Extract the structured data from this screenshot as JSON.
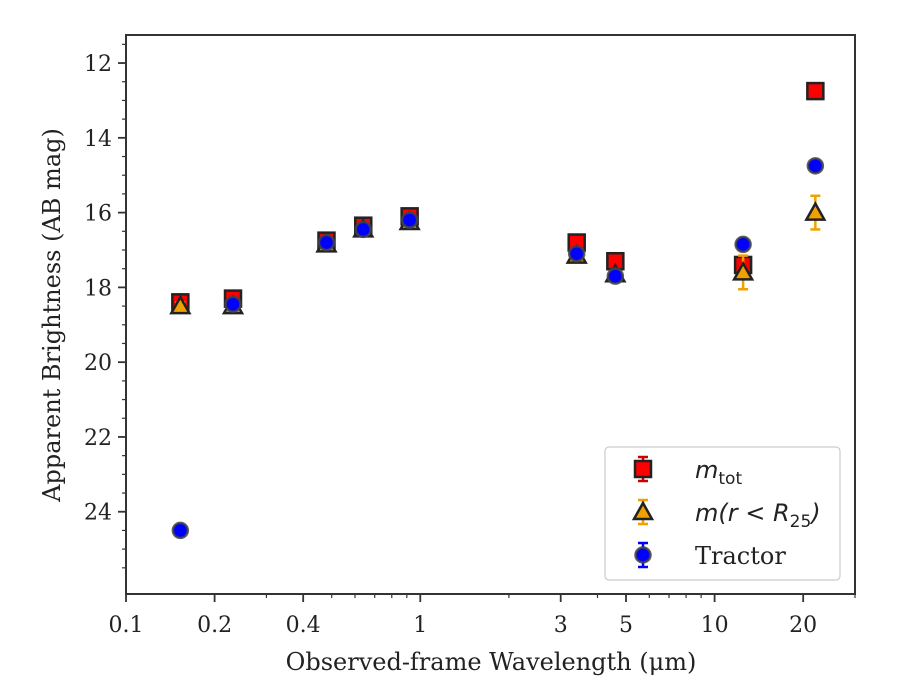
{
  "chart_data": {
    "type": "scatter",
    "xlabel": "Observed-frame Wavelength (μm)",
    "ylabel": "Apparent Brightness (AB mag)",
    "xscale": "log",
    "xlim": [
      0.1,
      30
    ],
    "ylim": [
      26.2,
      11.25
    ],
    "y_inverted": true,
    "xticks": [
      0.1,
      0.2,
      0.4,
      1,
      3,
      5,
      10,
      20
    ],
    "xtick_labels": [
      "0.1",
      "0.2",
      "0.4",
      "1",
      "3",
      "5",
      "10",
      "20"
    ],
    "yticks": [
      12,
      14,
      16,
      18,
      20,
      22,
      24
    ],
    "ytick_labels": [
      "12",
      "14",
      "16",
      "18",
      "20",
      "22",
      "24"
    ],
    "grid": false,
    "legend_placement": "lower-right",
    "series": [
      {
        "name": "m_tot",
        "legend_label": "m",
        "legend_sub": "tot",
        "marker": "square",
        "color": "#ff0000",
        "ecolor": "#cc0000",
        "x": [
          0.153,
          0.231,
          0.48,
          0.64,
          0.92,
          3.4,
          4.6,
          12.5,
          22.0
        ],
        "y": [
          18.4,
          18.3,
          16.75,
          16.35,
          16.1,
          16.8,
          17.3,
          17.4,
          12.75
        ],
        "yerr": [
          0.1,
          0.1,
          0.1,
          0.1,
          0.1,
          0.1,
          0.1,
          0.1,
          0.1
        ]
      },
      {
        "name": "m(r<R25)",
        "legend_label": "m(r < R",
        "legend_sub": "25",
        "legend_close": ")",
        "marker": "triangle",
        "color": "#f0a000",
        "ecolor": "#f0a000",
        "x": [
          0.153,
          0.231,
          0.48,
          0.64,
          0.92,
          3.4,
          4.6,
          12.5,
          22.0
        ],
        "y": [
          18.5,
          18.5,
          16.85,
          16.45,
          16.25,
          17.15,
          17.65,
          17.6,
          16.0
        ],
        "yerr": [
          0.1,
          0.1,
          0.1,
          0.1,
          0.1,
          0.1,
          0.1,
          0.45,
          0.45
        ]
      },
      {
        "name": "Tractor",
        "legend_label": "Tractor",
        "marker": "circle",
        "color": "#0000ff",
        "ecolor": "#0000ff",
        "x": [
          0.153,
          0.231,
          0.48,
          0.64,
          0.92,
          3.4,
          4.6,
          12.5,
          22.0
        ],
        "y": [
          24.5,
          18.45,
          16.8,
          16.45,
          16.2,
          17.1,
          17.7,
          16.85,
          14.75
        ],
        "yerr": [
          0.05,
          0.05,
          0.05,
          0.05,
          0.05,
          0.05,
          0.05,
          0.05,
          0.05
        ]
      }
    ]
  }
}
